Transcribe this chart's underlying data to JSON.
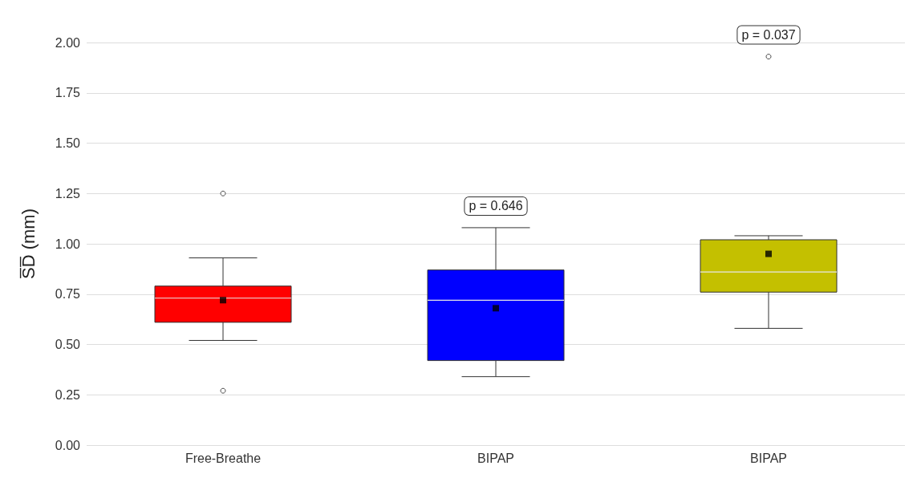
{
  "chart_data": {
    "type": "box",
    "ylabel": "S̅D̅ (mm)",
    "categories": [
      "Free-Breathe",
      "BIPAP",
      "BIPAP"
    ],
    "colors": [
      "#ff0000",
      "#0000ff",
      "#c4c000"
    ],
    "boxes": [
      {
        "low": 0.52,
        "q1": 0.61,
        "median": 0.73,
        "q3": 0.79,
        "high": 0.93,
        "mean": 0.72,
        "outliers": [
          1.25,
          0.27
        ]
      },
      {
        "low": 0.34,
        "q1": 0.42,
        "median": 0.72,
        "q3": 0.87,
        "high": 1.08,
        "mean": 0.68
      },
      {
        "low": 0.58,
        "q1": 0.76,
        "median": 0.86,
        "q3": 1.02,
        "high": 1.04,
        "mean": 0.95,
        "outliers": [
          1.93
        ]
      }
    ],
    "ylim": [
      0,
      2
    ],
    "yticks": [
      {
        "value": 0,
        "label": "0.00"
      },
      {
        "value": 0.25,
        "label": "0.25"
      },
      {
        "value": 0.5,
        "label": "0.50"
      },
      {
        "value": 0.75,
        "label": "0.75"
      },
      {
        "value": 1,
        "label": "1.00"
      },
      {
        "value": 1.25,
        "label": "1.25"
      },
      {
        "value": 1.5,
        "label": "1.50"
      },
      {
        "value": 1.75,
        "label": "1.75"
      },
      {
        "value": 2,
        "label": "2.00"
      }
    ],
    "grid": "y",
    "marker": "square",
    "annotations": [
      "p = 0.646",
      "p = 0.037"
    ]
  }
}
